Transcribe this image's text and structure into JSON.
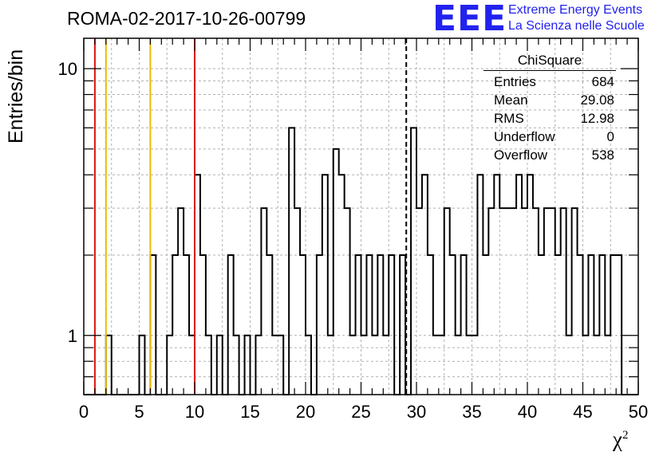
{
  "title": "ROMA-02-2017-10-26-00799",
  "logo": {
    "mark": "EEE",
    "line1": "Extreme Energy Events",
    "line2": "La Scienza nelle Scuole",
    "color": "#2222ee"
  },
  "stats": {
    "title": "ChiSquare",
    "rows": [
      {
        "label": "Entries",
        "value": "684"
      },
      {
        "label": "Mean",
        "value": "29.08"
      },
      {
        "label": "RMS",
        "value": "12.98"
      },
      {
        "label": "Underflow",
        "value": "0"
      },
      {
        "label": "Overflow",
        "value": "538"
      }
    ]
  },
  "chart_data": {
    "type": "bar",
    "title": "ROMA-02-2017-10-26-00799",
    "xlabel": "χ",
    "xlabel_sup": "2",
    "ylabel": "Entries/bin",
    "xlim": [
      0,
      50
    ],
    "ylim": [
      0.6,
      13
    ],
    "yscale": "log",
    "grid": true,
    "bin_width": 0.5,
    "bins": [
      [
        2.0,
        1
      ],
      [
        5.0,
        1
      ],
      [
        5.5,
        0
      ],
      [
        6.0,
        2
      ],
      [
        7.5,
        1
      ],
      [
        8.0,
        2
      ],
      [
        8.5,
        3
      ],
      [
        9.0,
        2
      ],
      [
        9.5,
        1
      ],
      [
        10.0,
        4
      ],
      [
        10.5,
        2
      ],
      [
        11.0,
        1
      ],
      [
        12.0,
        1
      ],
      [
        13.0,
        2
      ],
      [
        13.5,
        1
      ],
      [
        14.0,
        0
      ],
      [
        14.5,
        1
      ],
      [
        15.5,
        1
      ],
      [
        16.0,
        3
      ],
      [
        16.5,
        2
      ],
      [
        17.0,
        1
      ],
      [
        17.5,
        1
      ],
      [
        18.5,
        6
      ],
      [
        19.0,
        3
      ],
      [
        19.5,
        2
      ],
      [
        20.0,
        1
      ],
      [
        21.0,
        2
      ],
      [
        21.5,
        4
      ],
      [
        22.0,
        1
      ],
      [
        22.5,
        5
      ],
      [
        23.0,
        4
      ],
      [
        23.5,
        3
      ],
      [
        24.0,
        1
      ],
      [
        24.5,
        2
      ],
      [
        25.0,
        1
      ],
      [
        25.5,
        2
      ],
      [
        26.0,
        1
      ],
      [
        26.5,
        2
      ],
      [
        27.0,
        1
      ],
      [
        27.5,
        2
      ],
      [
        28.5,
        2
      ],
      [
        29.5,
        6
      ],
      [
        30.0,
        3
      ],
      [
        30.5,
        4
      ],
      [
        31.0,
        2
      ],
      [
        31.5,
        1
      ],
      [
        32.0,
        1
      ],
      [
        32.5,
        3
      ],
      [
        33.0,
        2
      ],
      [
        33.5,
        1
      ],
      [
        34.0,
        2
      ],
      [
        34.5,
        1
      ],
      [
        35.0,
        1
      ],
      [
        35.5,
        4
      ],
      [
        36.0,
        2
      ],
      [
        36.5,
        3
      ],
      [
        37.0,
        4
      ],
      [
        37.5,
        3
      ],
      [
        38.0,
        3
      ],
      [
        38.5,
        3
      ],
      [
        39.0,
        4
      ],
      [
        39.5,
        3
      ],
      [
        40.0,
        4
      ],
      [
        40.5,
        3
      ],
      [
        41.0,
        2
      ],
      [
        41.5,
        3
      ],
      [
        42.0,
        3
      ],
      [
        42.5,
        2
      ],
      [
        43.0,
        3
      ],
      [
        43.5,
        1
      ],
      [
        44.0,
        3
      ],
      [
        44.5,
        2
      ],
      [
        45.0,
        1
      ],
      [
        45.5,
        2
      ],
      [
        46.0,
        1
      ],
      [
        46.5,
        2
      ],
      [
        47.0,
        1
      ],
      [
        47.5,
        2
      ],
      [
        48.0,
        2
      ]
    ],
    "xticks": [
      "0",
      "5",
      "10",
      "15",
      "20",
      "25",
      "30",
      "35",
      "40",
      "45",
      "50"
    ],
    "yticks": [
      {
        "value": 1,
        "label": "1"
      },
      {
        "value": 10,
        "label": "10"
      }
    ],
    "vlines": [
      {
        "x": 1,
        "color": "#dd1111",
        "style": "solid"
      },
      {
        "x": 2,
        "color": "#eebb00",
        "style": "solid"
      },
      {
        "x": 6,
        "color": "#eebb00",
        "style": "solid"
      },
      {
        "x": 10,
        "color": "#dd1111",
        "style": "solid"
      },
      {
        "x": 29.08,
        "color": "#000000",
        "style": "dashed"
      }
    ]
  }
}
